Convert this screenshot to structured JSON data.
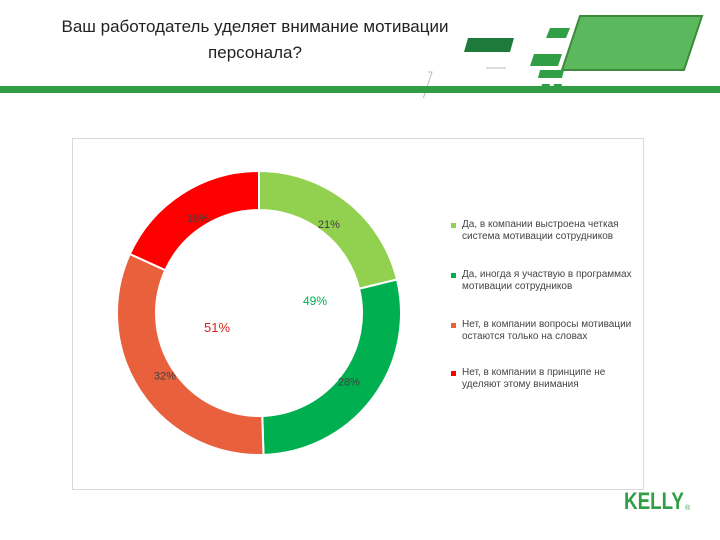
{
  "header": {
    "title_line1": "Ваш работодатель уделяет внимание мотивации",
    "title_line2": "персонала?"
  },
  "logo": {
    "text": "KELLY",
    "mark": "®"
  },
  "colors": {
    "light_green": "#92d050",
    "green": "#00b050",
    "orange_red": "#e8603c",
    "red": "#ff0000",
    "brand_green": "#2f9e44"
  },
  "chart_data": {
    "type": "pie",
    "variant": "donut",
    "categories": [
      "Да, в компании выстроена четкая система мотивации сотрудников",
      "Да, иногда я участвую в программах мотивации сотрудников",
      "Нет, в компании вопросы мотивации остаются только на словах",
      "Нет, в компании в принципе не уделяют этому внимания"
    ],
    "values": [
      21,
      28,
      32,
      18
    ],
    "value_labels": [
      "21%",
      "28%",
      "32%",
      "18%"
    ],
    "colors": [
      "#92d050",
      "#00b050",
      "#e8603c",
      "#ff0000"
    ],
    "group_annotations": [
      {
        "label": "49%",
        "color": "#00b050"
      },
      {
        "label": "51%",
        "color": "#d9261c"
      }
    ],
    "legend_position": "right"
  }
}
